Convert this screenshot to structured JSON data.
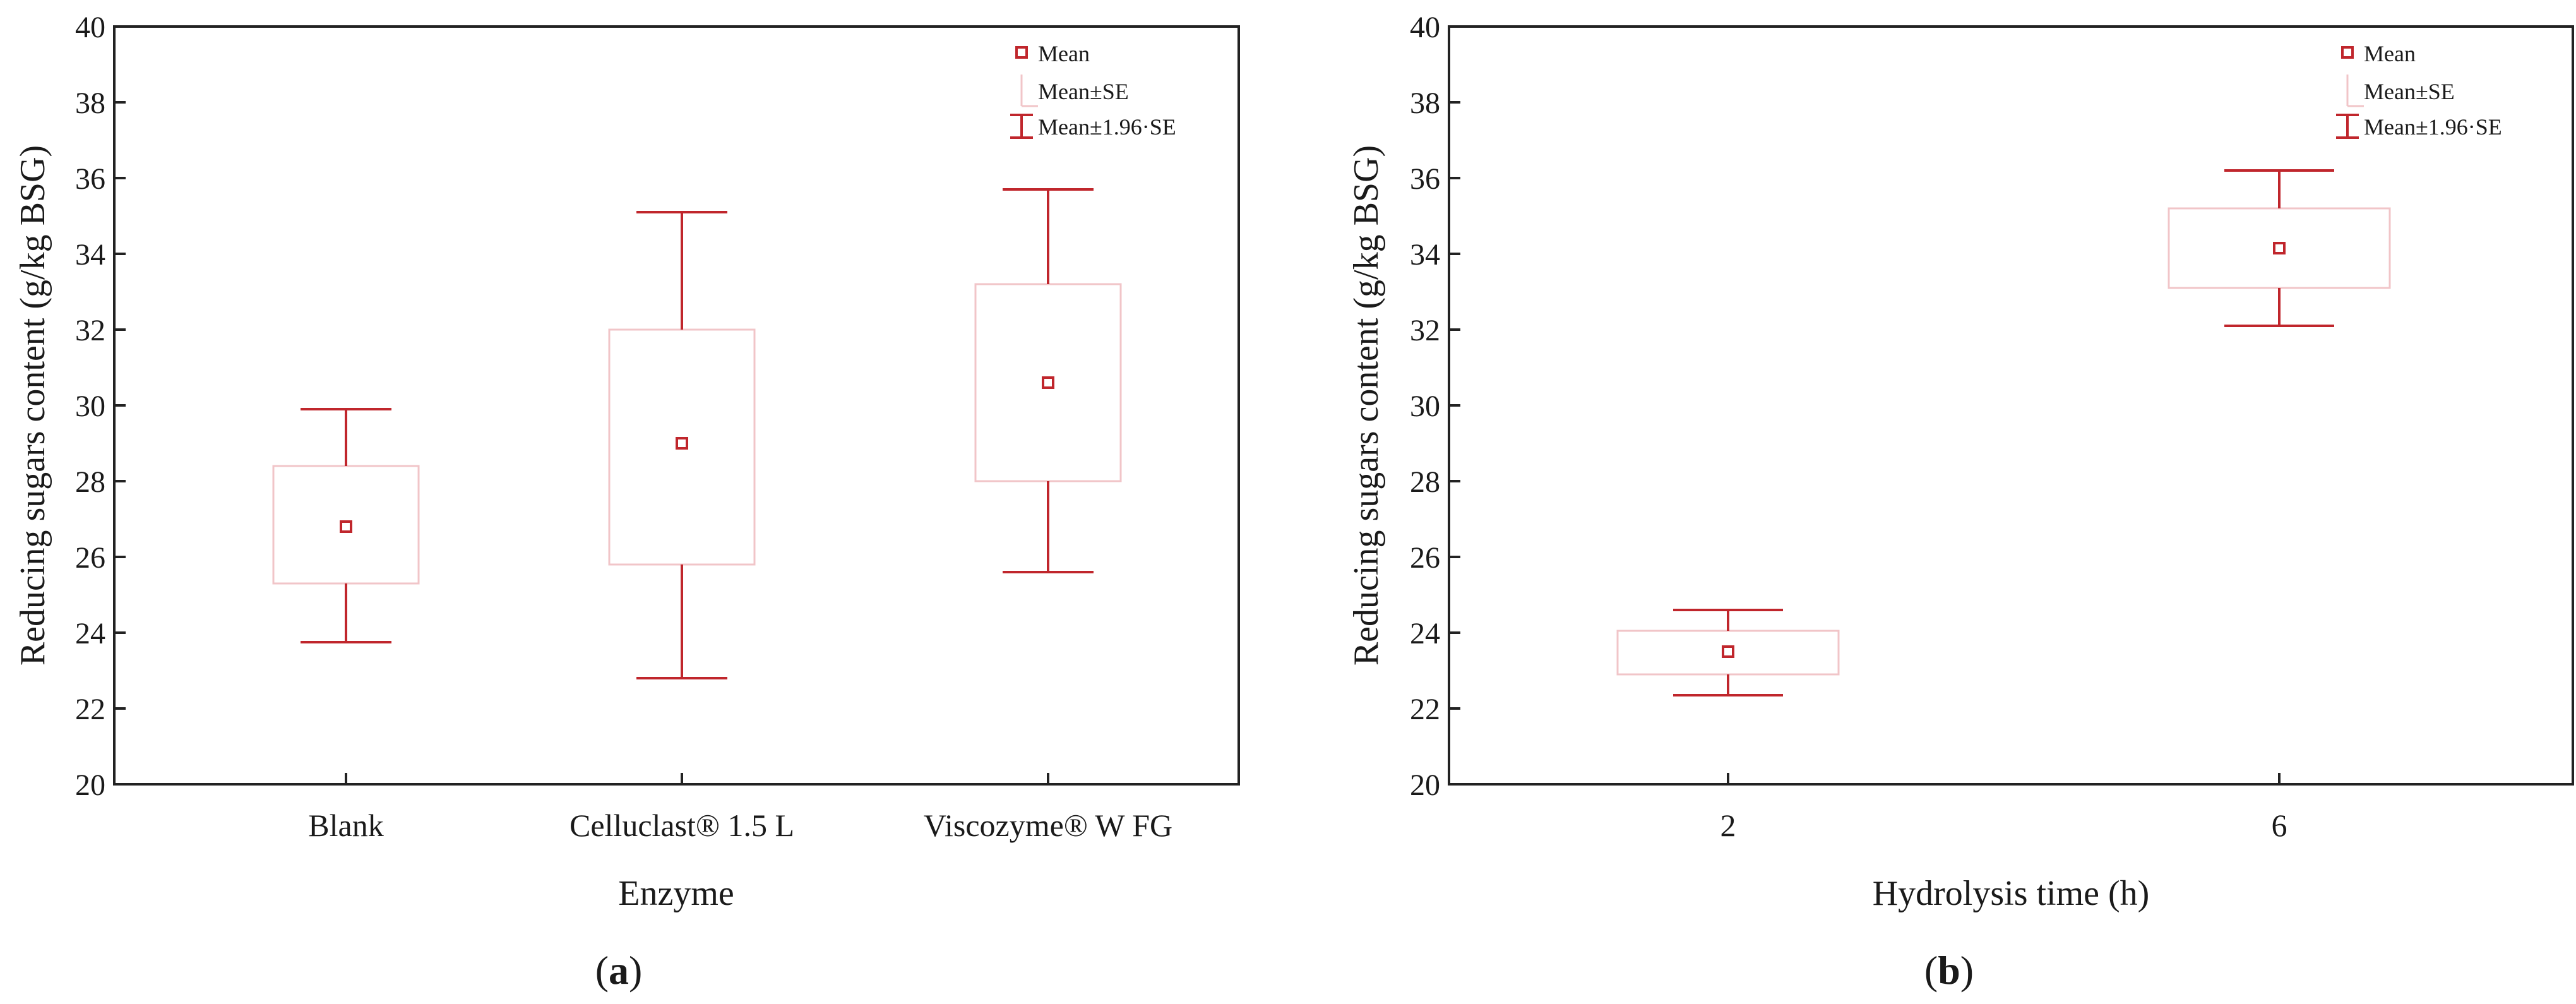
{
  "figure": {
    "colors": {
      "series": "#c0262c",
      "axis": "#222222",
      "text": "#1a1a1a"
    },
    "panels": [
      {
        "label_open": "(",
        "label_letter": "a",
        "label_close": ")"
      },
      {
        "label_open": "(",
        "label_letter": "b",
        "label_close": ")"
      }
    ]
  },
  "chart_data": [
    {
      "type": "error-bar",
      "xlabel": "Enzyme",
      "ylabel": "Reducing sugars content (g/kg BSG)",
      "ylim": [
        20,
        40
      ],
      "yticks": [
        20,
        22,
        24,
        26,
        28,
        30,
        32,
        34,
        36,
        38,
        40
      ],
      "ytick_labels": [
        "20",
        "22",
        "24",
        "26",
        "28",
        "30",
        "32",
        "34",
        "36",
        "38",
        "40"
      ],
      "categories": [
        "Blank",
        "Celluclast® 1.5 L",
        "Viscozyme® W FG"
      ],
      "series": [
        {
          "mean": [
            26.8,
            29.0,
            30.6
          ],
          "se_lower": [
            25.3,
            25.8,
            28.0
          ],
          "se_upper": [
            28.4,
            32.0,
            33.2
          ],
          "ci95_lower": [
            23.75,
            22.8,
            25.6
          ],
          "ci95_upper": [
            29.9,
            35.1,
            35.7
          ]
        }
      ],
      "legend": {
        "placement": "top-right",
        "entries": [
          "Mean",
          "Mean±SE",
          "Mean±1.96·SE"
        ]
      },
      "grid": false
    },
    {
      "type": "error-bar",
      "xlabel": "Hydrolysis time (h)",
      "ylabel": "Reducing sugars content (g/kg BSG)",
      "ylim": [
        20,
        40
      ],
      "yticks": [
        20,
        22,
        24,
        26,
        28,
        30,
        32,
        34,
        36,
        38,
        40
      ],
      "ytick_labels": [
        "20",
        "22",
        "24",
        "26",
        "28",
        "30",
        "32",
        "34",
        "36",
        "38",
        "40"
      ],
      "categories": [
        "2",
        "6"
      ],
      "series": [
        {
          "mean": [
            23.5,
            34.15
          ],
          "se_lower": [
            22.9,
            33.1
          ],
          "se_upper": [
            24.05,
            35.2
          ],
          "ci95_lower": [
            22.35,
            32.1
          ],
          "ci95_upper": [
            24.6,
            36.2
          ]
        }
      ],
      "legend": {
        "placement": "top-right",
        "entries": [
          "Mean",
          "Mean±SE",
          "Mean±1.96·SE"
        ]
      },
      "grid": false
    }
  ]
}
